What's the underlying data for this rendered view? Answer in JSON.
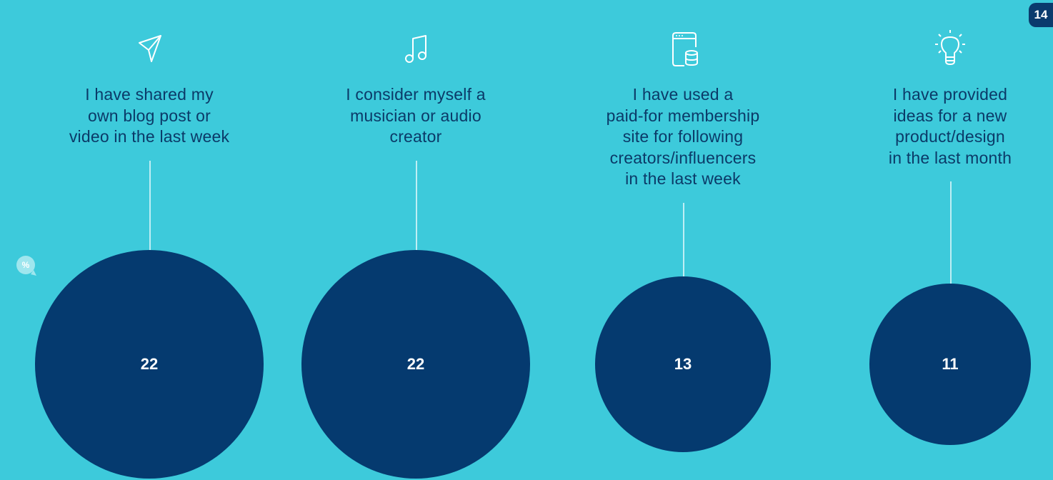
{
  "page_number": "14",
  "unit_badge": "%",
  "colors": {
    "background": "#3dcadb",
    "bubble": "#053a6f",
    "label_text": "#0b3a68",
    "icon_stroke": "#ffffff"
  },
  "chart_data": {
    "type": "bubble",
    "unit": "%",
    "items": [
      {
        "label_lines": [
          "I have shared my",
          "own blog post or",
          "video in the last week"
        ],
        "value": 22,
        "value_label": "22",
        "icon": "paper-plane-icon"
      },
      {
        "label_lines": [
          "I consider myself a",
          "musician or audio",
          "creator"
        ],
        "value": 22,
        "value_label": "22",
        "icon": "music-note-icon"
      },
      {
        "label_lines": [
          "I have used a",
          "paid-for membership",
          "site for following",
          "creators/influencers",
          "in the last week"
        ],
        "value": 13,
        "value_label": "13",
        "icon": "browser-database-icon"
      },
      {
        "label_lines": [
          "I have provided",
          "ideas for a new",
          "product/design",
          "in the last month"
        ],
        "value": 11,
        "value_label": "11",
        "icon": "lightbulb-icon"
      }
    ]
  }
}
